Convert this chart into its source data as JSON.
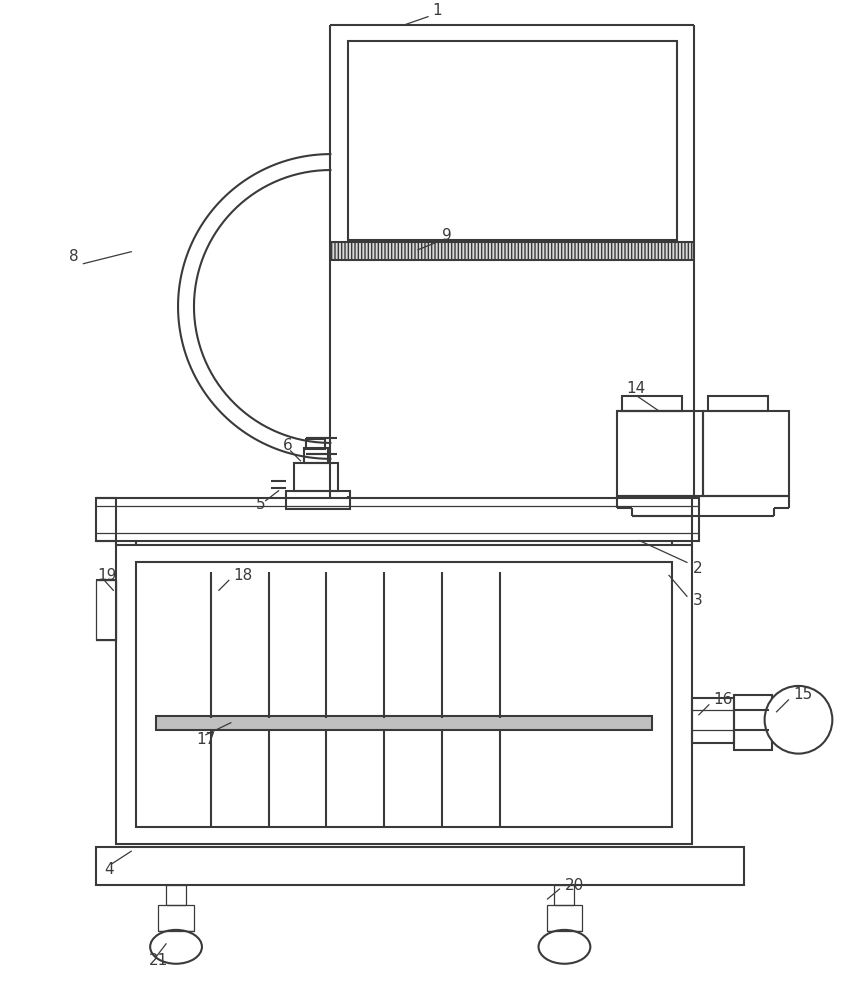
{
  "bg_color": "#ffffff",
  "line_color": "#3a3a3a",
  "lw": 1.5,
  "lw_thin": 0.9,
  "fig_width": 8.59,
  "fig_height": 10.0
}
